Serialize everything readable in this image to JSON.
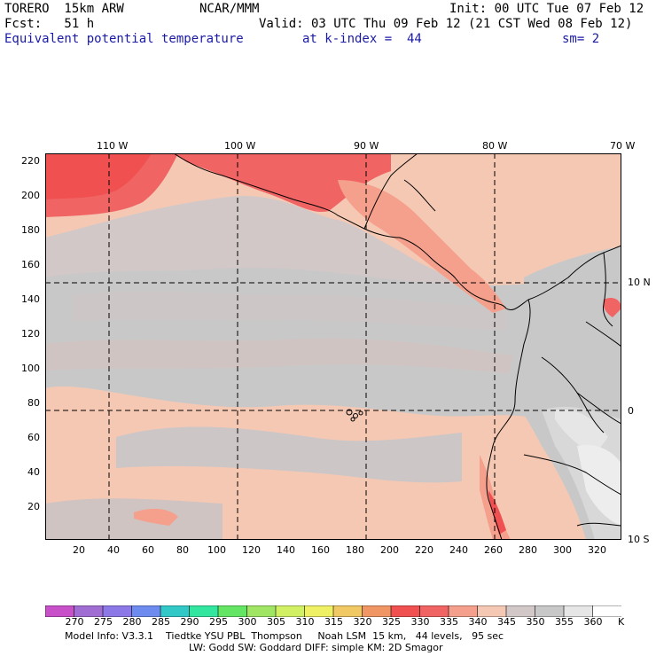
{
  "header": {
    "model": "TORERO  15km ARW",
    "org": "NCAR/MMM",
    "init": "Init: 00 UTC Tue 07 Feb 12",
    "fcst": "Fcst:   51 h",
    "valid": "Valid: 03 UTC Thu 09 Feb 12 (21 CST Wed 08 Feb 12)",
    "field": "Equivalent potential temperature",
    "level": "at k-index =  44",
    "smooth": "sm= 2"
  },
  "map": {
    "top_lon_labels": [
      "110 W",
      "100 W",
      "90 W",
      "80 W",
      "70 W"
    ],
    "right_lat_labels": [
      "10 N",
      "0",
      "10 S"
    ],
    "left_grid_labels": [
      "220",
      "200",
      "180",
      "160",
      "140",
      "120",
      "100",
      "80",
      "60",
      "40",
      "20"
    ],
    "bottom_grid_labels": [
      "20",
      "40",
      "60",
      "80",
      "100",
      "120",
      "140",
      "160",
      "180",
      "200",
      "220",
      "240",
      "260",
      "280",
      "300",
      "320"
    ]
  },
  "colorbar": {
    "labels": [
      "270",
      "275",
      "280",
      "285",
      "290",
      "295",
      "300",
      "305",
      "310",
      "315",
      "320",
      "325",
      "330",
      "335",
      "340",
      "345",
      "350",
      "355",
      "360"
    ],
    "unit": "K",
    "colors": [
      "#c850c8",
      "#a06ed2",
      "#8c78e6",
      "#6e8cf0",
      "#32c8c8",
      "#32e6a0",
      "#64e664",
      "#a0e664",
      "#d2f064",
      "#f0f064",
      "#f0c864",
      "#f09664",
      "#f05050",
      "#f06464",
      "#f5a08c",
      "#f5c8b4",
      "#d2c8c8",
      "#c8c8c8",
      "#e6e6e6",
      "#ffffff"
    ]
  },
  "footer": {
    "line1": "Model Info: V3.3.1    Tiedtke YSU PBL  Thompson     Noah LSM  15 km,   44 levels,   95 sec",
    "line2": "LW: Godd SW: Goddard DIFF: simple KM: 2D Smagor"
  }
}
